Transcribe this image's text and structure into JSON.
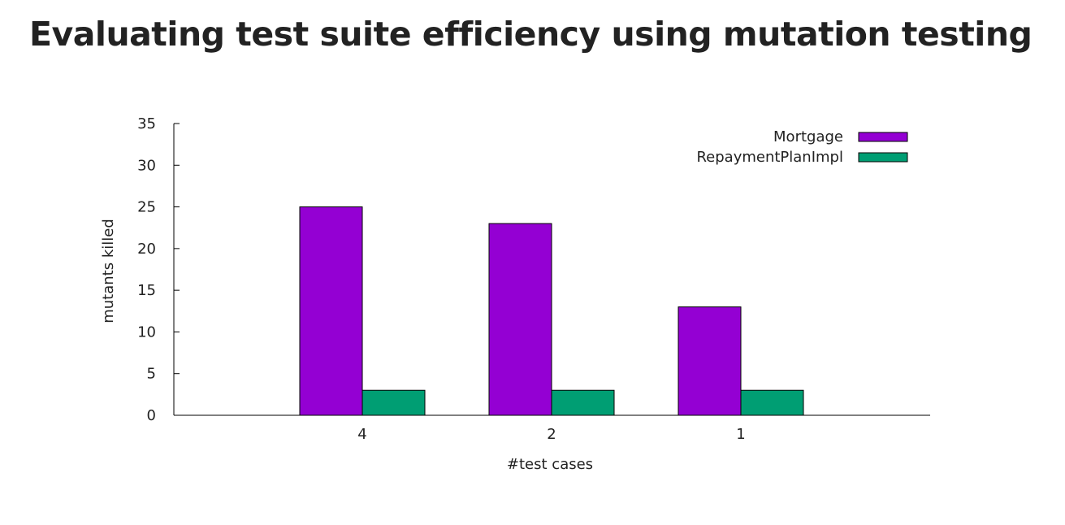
{
  "slide": {
    "title": "Evaluating test suite efficiency using mutation testing"
  },
  "chart_data": {
    "type": "bar",
    "categories": [
      "4",
      "2",
      "1"
    ],
    "series": [
      {
        "name": "Mortgage",
        "values": [
          25,
          23,
          13
        ],
        "color": "#9400d3"
      },
      {
        "name": "RepaymentPlanImpl",
        "values": [
          3,
          3,
          3
        ],
        "color": "#009e73"
      }
    ],
    "xlabel": "#test cases",
    "ylabel": "mutants killed",
    "ylim": [
      0,
      35
    ],
    "yticks": [
      0,
      5,
      10,
      15,
      20,
      25,
      30,
      35
    ],
    "grid": false,
    "legend": "top-right"
  }
}
